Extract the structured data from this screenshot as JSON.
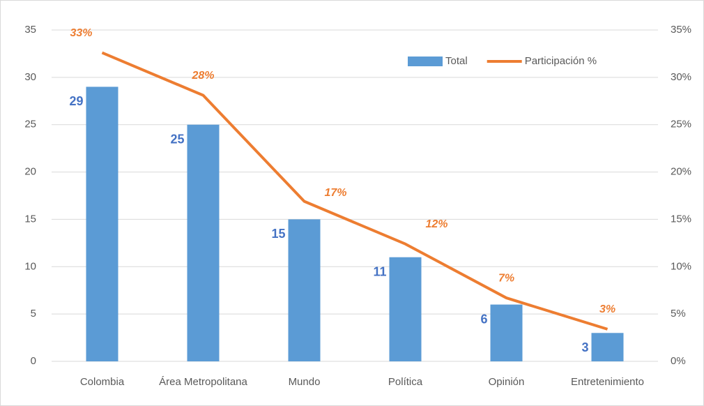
{
  "chart_data": {
    "type": "bar_line",
    "categories": [
      "Colombia",
      "Área Metropolitana",
      "Mundo",
      "Política",
      "Opinión",
      "Entretenimiento"
    ],
    "series": [
      {
        "name": "Total",
        "type": "bar",
        "color": "#5b9bd5",
        "values": [
          29,
          25,
          15,
          11,
          6,
          3
        ]
      },
      {
        "name": "Participación %",
        "type": "line",
        "axis": "y2",
        "color": "#ed7d31",
        "values": [
          32.6,
          28.1,
          16.9,
          12.4,
          6.7,
          3.4
        ],
        "value_labels": [
          "33%",
          "28%",
          "17%",
          "12%",
          "7%",
          "3%"
        ]
      }
    ],
    "ylim": [
      0,
      35
    ],
    "yticks": [
      0,
      5,
      10,
      15,
      20,
      25,
      30,
      35
    ],
    "y2lim": [
      0,
      35
    ],
    "y2ticks": [
      {
        "value": 0,
        "label": "0%"
      },
      {
        "value": 5,
        "label": "5%"
      },
      {
        "value": 10,
        "label": "10%"
      },
      {
        "value": 15,
        "label": "15%"
      },
      {
        "value": 20,
        "label": "20%"
      },
      {
        "value": 25,
        "label": "25%"
      },
      {
        "value": 30,
        "label": "30%"
      },
      {
        "value": 35,
        "label": "35%"
      }
    ],
    "grid": true,
    "legend": "upper right"
  }
}
